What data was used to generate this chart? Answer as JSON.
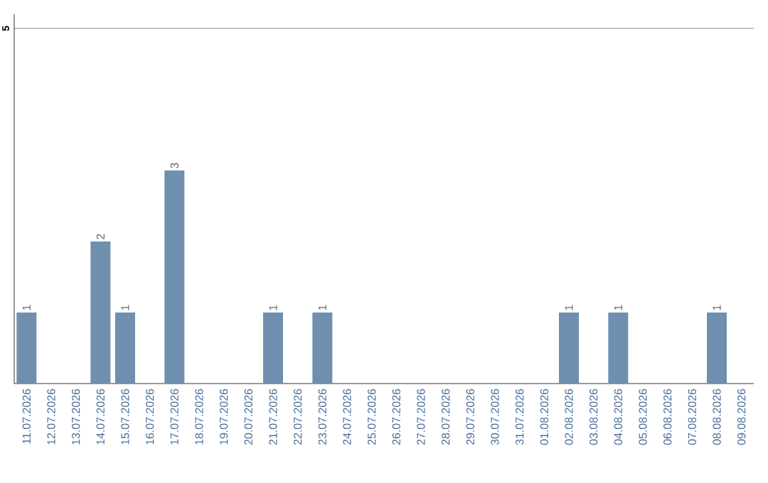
{
  "chart_data": {
    "type": "bar",
    "categories": [
      "11.07.2026",
      "12.07.2026",
      "13.07.2026",
      "14.07.2026",
      "15.07.2026",
      "16.07.2026",
      "17.07.2026",
      "18.07.2026",
      "19.07.2026",
      "20.07.2026",
      "21.07.2026",
      "22.07.2026",
      "23.07.2026",
      "24.07.2026",
      "25.07.2026",
      "26.07.2026",
      "27.07.2026",
      "28.07.2026",
      "29.07.2026",
      "30.07.2026",
      "31.07.2026",
      "01.08.2026",
      "02.08.2026",
      "03.08.2026",
      "04.08.2026",
      "05.08.2026",
      "06.08.2026",
      "07.08.2026",
      "08.08.2026",
      "09.08.2026"
    ],
    "values": [
      1,
      0,
      0,
      2,
      1,
      0,
      3,
      0,
      0,
      0,
      1,
      0,
      1,
      0,
      0,
      0,
      0,
      0,
      0,
      0,
      0,
      0,
      1,
      0,
      1,
      0,
      0,
      0,
      1,
      0
    ],
    "value_labels": [
      "1",
      null,
      null,
      "2",
      "1",
      null,
      "3",
      null,
      null,
      null,
      "1",
      null,
      "1",
      null,
      null,
      null,
      null,
      null,
      null,
      null,
      null,
      null,
      "1",
      null,
      "1",
      null,
      null,
      null,
      "1",
      null
    ],
    "color": "#6f8fae",
    "ylim": [
      0,
      5.2
    ],
    "yticks": [
      5
    ],
    "grid": "y"
  }
}
